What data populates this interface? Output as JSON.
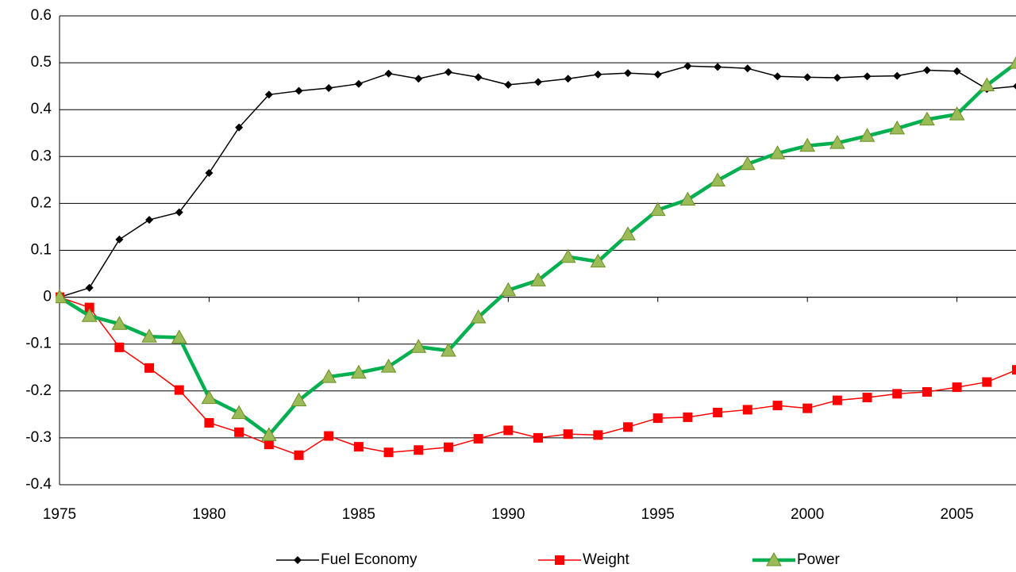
{
  "chart_data": {
    "type": "line",
    "x": [
      1975,
      1976,
      1977,
      1978,
      1979,
      1980,
      1981,
      1982,
      1983,
      1984,
      1985,
      1986,
      1987,
      1988,
      1989,
      1990,
      1991,
      1992,
      1993,
      1994,
      1995,
      1996,
      1997,
      1998,
      1999,
      2000,
      2001,
      2002,
      2003,
      2004,
      2005,
      2006,
      2007
    ],
    "series": [
      {
        "name": "Fuel Economy",
        "color": "#000000",
        "marker": "diamond",
        "values": [
          0,
          0.02,
          0.123,
          0.165,
          0.181,
          0.265,
          0.362,
          0.432,
          0.44,
          0.446,
          0.455,
          0.477,
          0.466,
          0.48,
          0.469,
          0.453,
          0.459,
          0.466,
          0.475,
          0.478,
          0.475,
          0.493,
          0.491,
          0.488,
          0.471,
          0.469,
          0.468,
          0.471,
          0.472,
          0.484,
          0.482,
          0.444,
          0.45
        ]
      },
      {
        "name": "Weight",
        "color": "#ff0000",
        "marker": "square",
        "values": [
          0,
          -0.022,
          -0.107,
          -0.151,
          -0.198,
          -0.268,
          -0.288,
          -0.314,
          -0.337,
          -0.296,
          -0.319,
          -0.331,
          -0.326,
          -0.32,
          -0.302,
          -0.284,
          -0.3,
          -0.292,
          -0.294,
          -0.277,
          -0.258,
          -0.256,
          -0.246,
          -0.24,
          -0.231,
          -0.237,
          -0.22,
          -0.214,
          -0.206,
          -0.202,
          -0.192,
          -0.181,
          -0.155
        ]
      },
      {
        "name": "Power",
        "color": "#00b050",
        "marker": "triangle",
        "values": [
          0,
          -0.04,
          -0.057,
          -0.084,
          -0.086,
          -0.215,
          -0.247,
          -0.294,
          -0.22,
          -0.17,
          -0.161,
          -0.148,
          -0.106,
          -0.114,
          -0.043,
          0.015,
          0.036,
          0.086,
          0.076,
          0.134,
          0.186,
          0.208,
          0.249,
          0.284,
          0.307,
          0.323,
          0.329,
          0.344,
          0.36,
          0.379,
          0.39,
          0.452,
          0.5
        ]
      }
    ],
    "xlim": [
      1975,
      2007
    ],
    "xticks": [
      1975,
      1980,
      1985,
      1990,
      1995,
      2000,
      2005
    ],
    "ylim": [
      -0.4,
      0.6
    ],
    "yticks": [
      -0.4,
      -0.3,
      -0.2,
      -0.1,
      0,
      0.1,
      0.2,
      0.3,
      0.4,
      0.5,
      0.6
    ],
    "grid": true,
    "legend": "bottom"
  }
}
